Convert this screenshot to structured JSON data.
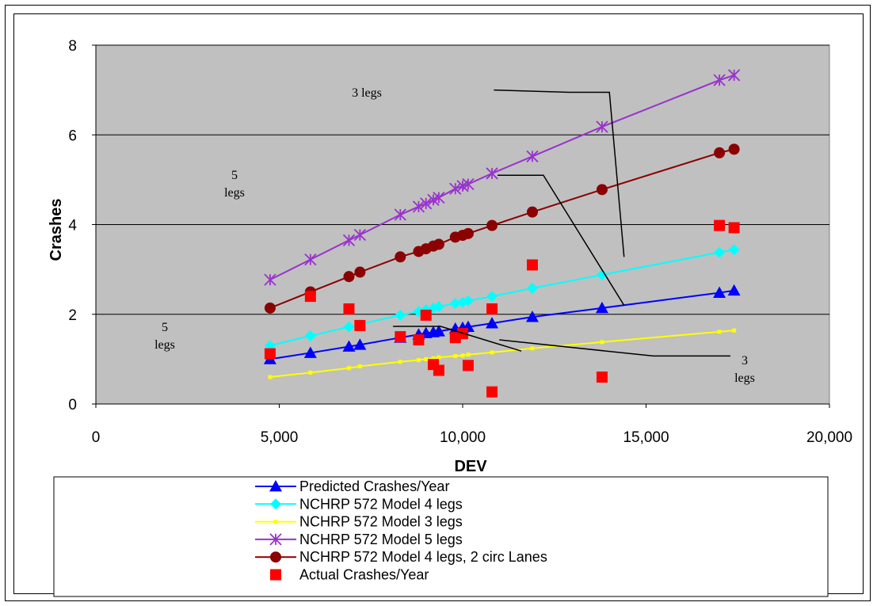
{
  "chart_data": {
    "type": "scatter",
    "xlabel": "DEV",
    "ylabel": "Crashes",
    "xlim": [
      0,
      20000
    ],
    "ylim": [
      0,
      8
    ],
    "x_ticks": [
      0,
      5000,
      10000,
      15000,
      20000
    ],
    "x_tick_labels": [
      "0",
      "5,000",
      "10,000",
      "15,000",
      "20,000"
    ],
    "y_ticks": [
      0,
      2,
      4,
      6,
      8
    ],
    "y_tick_labels": [
      "0",
      "2",
      "4",
      "6",
      "8"
    ],
    "grid": "horizontal",
    "plot_background": "#c0c0c0",
    "legend_position": "bottom",
    "series": [
      {
        "name": "Predicted Crashes/Year",
        "color": "#0000ff",
        "marker": "triangle",
        "line": true,
        "points": [
          [
            4750,
            1.0
          ],
          [
            5850,
            1.14
          ],
          [
            6900,
            1.28
          ],
          [
            7200,
            1.32
          ],
          [
            8300,
            1.48
          ],
          [
            8800,
            1.55
          ],
          [
            9000,
            1.58
          ],
          [
            9200,
            1.6
          ],
          [
            9350,
            1.62
          ],
          [
            9800,
            1.68
          ],
          [
            10000,
            1.7
          ],
          [
            10150,
            1.72
          ],
          [
            10800,
            1.8
          ],
          [
            11900,
            1.94
          ],
          [
            13800,
            2.14
          ],
          [
            17000,
            2.48
          ],
          [
            17400,
            2.53
          ]
        ]
      },
      {
        "name": "NCHRP 572 Model 4 legs",
        "color": "#00ffff",
        "marker": "diamond",
        "line": true,
        "points": [
          [
            4750,
            1.3
          ],
          [
            5850,
            1.52
          ],
          [
            6900,
            1.72
          ],
          [
            7200,
            1.78
          ],
          [
            8300,
            1.98
          ],
          [
            8800,
            2.06
          ],
          [
            9000,
            2.1
          ],
          [
            9200,
            2.14
          ],
          [
            9350,
            2.17
          ],
          [
            9800,
            2.24
          ],
          [
            10000,
            2.27
          ],
          [
            10150,
            2.3
          ],
          [
            10800,
            2.4
          ],
          [
            11900,
            2.58
          ],
          [
            13800,
            2.88
          ],
          [
            17000,
            3.38
          ],
          [
            17400,
            3.44
          ]
        ]
      },
      {
        "name": "NCHRP 572 Model 3 legs",
        "color": "#ffff00",
        "marker": "dot",
        "line": true,
        "points": [
          [
            4750,
            0.6
          ],
          [
            5850,
            0.7
          ],
          [
            6900,
            0.8
          ],
          [
            7200,
            0.84
          ],
          [
            8300,
            0.94
          ],
          [
            8800,
            0.98
          ],
          [
            9000,
            1.0
          ],
          [
            9200,
            1.02
          ],
          [
            9350,
            1.04
          ],
          [
            9800,
            1.07
          ],
          [
            10000,
            1.08
          ],
          [
            10150,
            1.1
          ],
          [
            10800,
            1.15
          ],
          [
            11900,
            1.24
          ],
          [
            13800,
            1.38
          ],
          [
            17000,
            1.61
          ],
          [
            17400,
            1.64
          ]
        ]
      },
      {
        "name": "NCHRP 572 Model 5 legs",
        "color": "#9933cc",
        "marker": "asterisk",
        "line": true,
        "points": [
          [
            4750,
            2.77
          ],
          [
            5850,
            3.22
          ],
          [
            6900,
            3.65
          ],
          [
            7200,
            3.77
          ],
          [
            8300,
            4.22
          ],
          [
            8800,
            4.4
          ],
          [
            9000,
            4.47
          ],
          [
            9200,
            4.55
          ],
          [
            9350,
            4.6
          ],
          [
            9800,
            4.8
          ],
          [
            10000,
            4.86
          ],
          [
            10150,
            4.9
          ],
          [
            10800,
            5.14
          ],
          [
            11900,
            5.52
          ],
          [
            13800,
            6.18
          ],
          [
            17000,
            7.22
          ],
          [
            17400,
            7.33
          ]
        ]
      },
      {
        "name": "NCHRP 572 Model 4 legs, 2 circ Lanes",
        "color": "#8b0000",
        "marker": "circle",
        "line": true,
        "points": [
          [
            4750,
            2.14
          ],
          [
            5850,
            2.5
          ],
          [
            6900,
            2.84
          ],
          [
            7200,
            2.94
          ],
          [
            8300,
            3.28
          ],
          [
            8800,
            3.4
          ],
          [
            9000,
            3.46
          ],
          [
            9200,
            3.52
          ],
          [
            9350,
            3.56
          ],
          [
            9800,
            3.72
          ],
          [
            10000,
            3.76
          ],
          [
            10150,
            3.8
          ],
          [
            10800,
            3.98
          ],
          [
            11900,
            4.28
          ],
          [
            13800,
            4.78
          ],
          [
            17000,
            5.6
          ],
          [
            17400,
            5.68
          ]
        ]
      },
      {
        "name": "Actual Crashes/Year",
        "color": "#ff0000",
        "marker": "square",
        "line": false,
        "points": [
          [
            4750,
            1.12
          ],
          [
            5850,
            2.4
          ],
          [
            6900,
            2.12
          ],
          [
            7200,
            1.75
          ],
          [
            8300,
            1.5
          ],
          [
            8800,
            1.43
          ],
          [
            9000,
            1.98
          ],
          [
            9200,
            0.88
          ],
          [
            9350,
            0.75
          ],
          [
            9800,
            1.48
          ],
          [
            10000,
            1.57
          ],
          [
            10150,
            0.86
          ],
          [
            10800,
            0.27
          ],
          [
            10800,
            2.12
          ],
          [
            11900,
            3.1
          ],
          [
            13800,
            0.6
          ],
          [
            17000,
            3.98
          ],
          [
            17400,
            3.93
          ]
        ]
      }
    ],
    "annotations": [
      {
        "lines": [
          "3 legs"
        ],
        "leader": [
          [
            10850,
            7.0
          ],
          [
            12900,
            6.95
          ],
          [
            14000,
            6.95
          ],
          [
            14400,
            3.28
          ]
        ]
      },
      {
        "lines": [
          "5",
          "legs"
        ],
        "leader": [
          [
            10950,
            5.1
          ],
          [
            12200,
            5.1
          ],
          [
            14400,
            2.2
          ]
        ]
      },
      {
        "lines": [
          "5",
          "legs"
        ],
        "leader": [
          [
            8100,
            1.73
          ],
          [
            9400,
            1.73
          ],
          [
            11600,
            1.18
          ]
        ]
      },
      {
        "lines": [
          "3",
          "legs"
        ],
        "leader": [
          [
            17300,
            1.07
          ],
          [
            15200,
            1.07
          ],
          [
            11000,
            1.43
          ]
        ]
      }
    ]
  }
}
